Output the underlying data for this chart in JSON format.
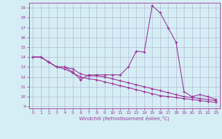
{
  "x_values": [
    0,
    1,
    2,
    3,
    4,
    5,
    6,
    7,
    8,
    9,
    10,
    11,
    12,
    13,
    14,
    15,
    16,
    17,
    18,
    19,
    20,
    21,
    22,
    23
  ],
  "line1_y": [
    14,
    14,
    13.5,
    13,
    13,
    12.5,
    11.7,
    12.2,
    12.2,
    12.2,
    12.2,
    12.2,
    13,
    14.6,
    14.5,
    19.2,
    18.5,
    17,
    15.5,
    10.5,
    10.0,
    10.2,
    10.0,
    9.7
  ],
  "line2_y": [
    14,
    14,
    13.5,
    13,
    13,
    12.8,
    12.3,
    12.1,
    12.1,
    12.0,
    11.8,
    11.6,
    11.4,
    11.2,
    11.0,
    10.8,
    10.6,
    10.4,
    10.2,
    10.0,
    9.9,
    9.8,
    9.7,
    9.6
  ],
  "line3_y": [
    14,
    14,
    13.5,
    13,
    12.8,
    12.4,
    12.0,
    11.8,
    11.7,
    11.5,
    11.3,
    11.1,
    10.9,
    10.7,
    10.5,
    10.3,
    10.1,
    10.0,
    9.9,
    9.8,
    9.7,
    9.6,
    9.5,
    9.4
  ],
  "line_color": "#993399",
  "bg_color": "#d5eef5",
  "grid_color": "#aaaacc",
  "xlabel": "Windchill (Refroidissement éolien,°C)",
  "xlim": [
    -0.5,
    23.5
  ],
  "ylim": [
    8.8,
    19.5
  ],
  "yticks": [
    9,
    10,
    11,
    12,
    13,
    14,
    15,
    16,
    17,
    18,
    19
  ],
  "xticks": [
    0,
    1,
    2,
    3,
    4,
    5,
    6,
    7,
    8,
    9,
    10,
    11,
    12,
    13,
    14,
    15,
    16,
    17,
    18,
    19,
    20,
    21,
    22,
    23
  ]
}
